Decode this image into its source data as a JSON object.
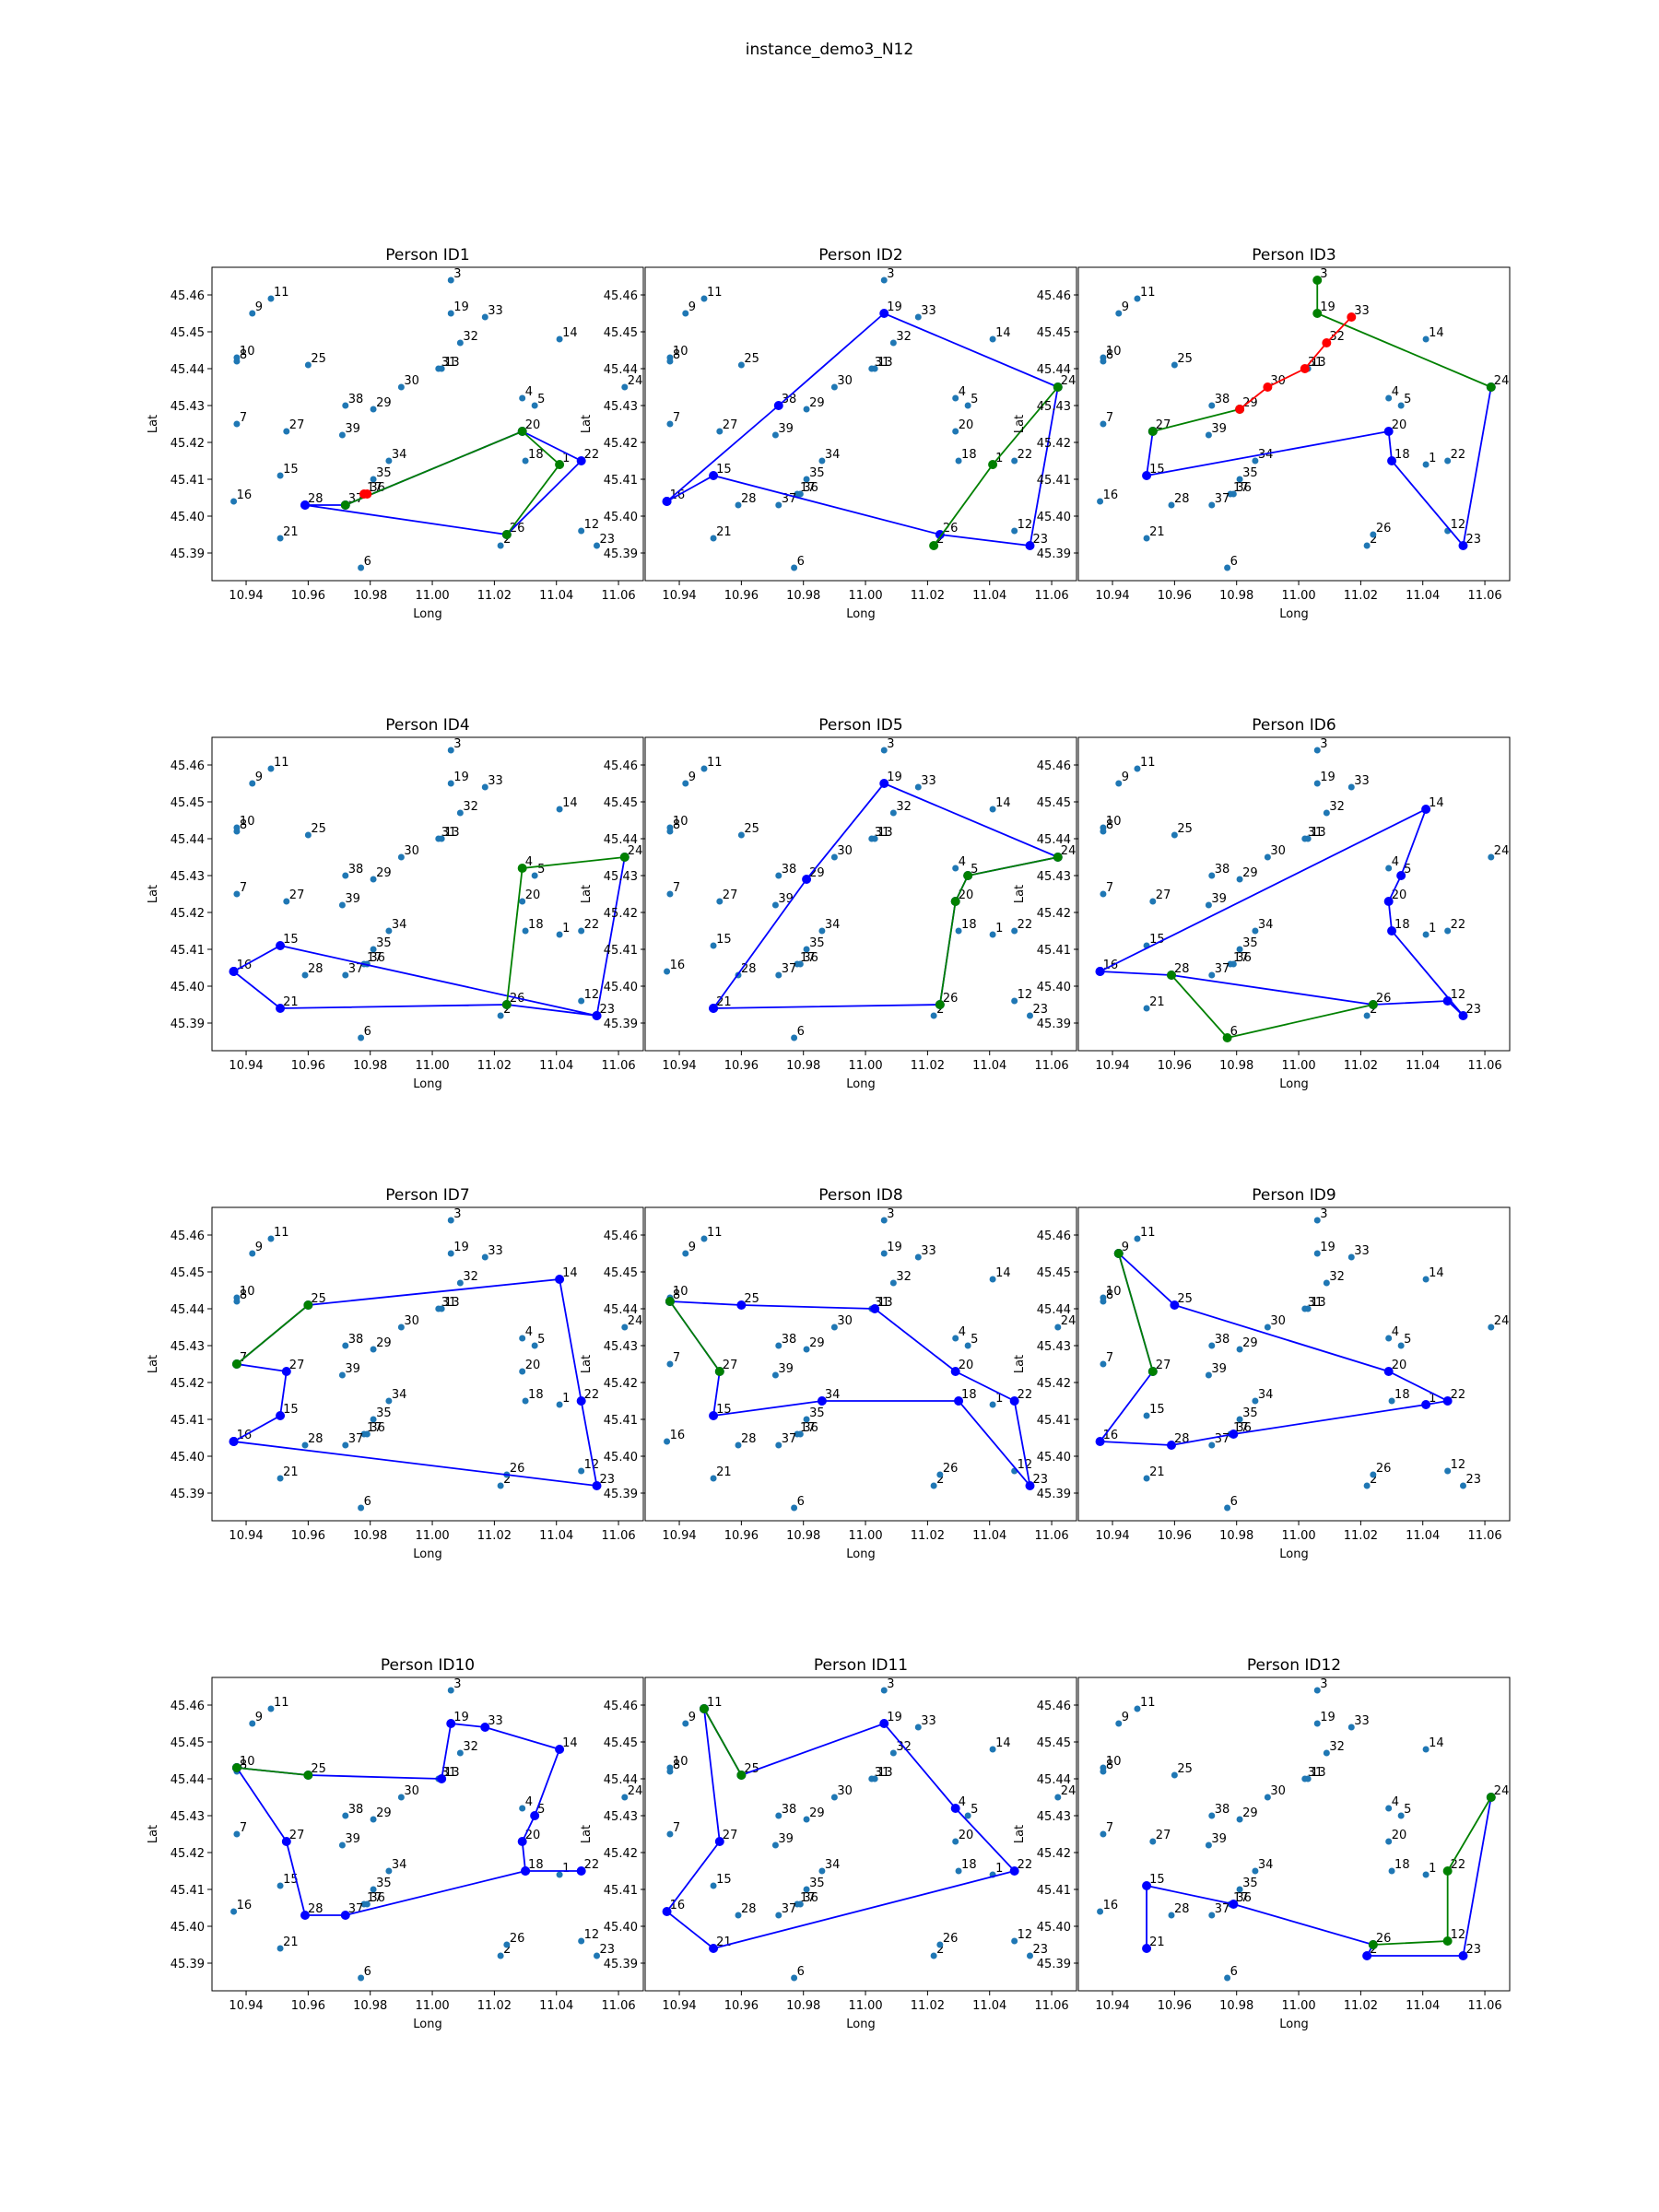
{
  "figure_title": "instance_demo3_N12",
  "xlabel": "Long",
  "ylabel": "Lat",
  "xticks": [
    "10.94",
    "10.96",
    "10.98",
    "11.00",
    "11.02",
    "11.04",
    "11.06"
  ],
  "yticks": [
    "45.39",
    "45.40",
    "45.41",
    "45.42",
    "45.43",
    "45.44",
    "45.45",
    "45.46"
  ],
  "colors": {
    "points": "#1f77b4",
    "route": "#0000ff",
    "walk": "#008000",
    "alt": "#ff0000"
  },
  "chart_data": {
    "type": "scatter",
    "xlim": [
      10.929,
      11.068
    ],
    "ylim": [
      45.3825,
      45.4675
    ],
    "nodes": [
      {
        "id": "1",
        "x": 11.041,
        "y": 45.414
      },
      {
        "id": "2",
        "x": 11.022,
        "y": 45.392
      },
      {
        "id": "3",
        "x": 11.006,
        "y": 45.464
      },
      {
        "id": "4",
        "x": 11.029,
        "y": 45.432
      },
      {
        "id": "5",
        "x": 11.033,
        "y": 45.43
      },
      {
        "id": "6",
        "x": 10.977,
        "y": 45.386
      },
      {
        "id": "7",
        "x": 10.937,
        "y": 45.425
      },
      {
        "id": "8",
        "x": 10.937,
        "y": 45.442
      },
      {
        "id": "9",
        "x": 10.942,
        "y": 45.455
      },
      {
        "id": "10",
        "x": 10.937,
        "y": 45.443
      },
      {
        "id": "11",
        "x": 10.948,
        "y": 45.459
      },
      {
        "id": "12",
        "x": 11.048,
        "y": 45.396
      },
      {
        "id": "13",
        "x": 11.003,
        "y": 45.44
      },
      {
        "id": "14",
        "x": 11.041,
        "y": 45.448
      },
      {
        "id": "15",
        "x": 10.951,
        "y": 45.411
      },
      {
        "id": "16",
        "x": 10.936,
        "y": 45.404
      },
      {
        "id": "17",
        "x": 10.978,
        "y": 45.406
      },
      {
        "id": "18",
        "x": 11.03,
        "y": 45.415
      },
      {
        "id": "19",
        "x": 11.006,
        "y": 45.455
      },
      {
        "id": "20",
        "x": 11.029,
        "y": 45.423
      },
      {
        "id": "21",
        "x": 10.951,
        "y": 45.394
      },
      {
        "id": "22",
        "x": 11.048,
        "y": 45.415
      },
      {
        "id": "23",
        "x": 11.053,
        "y": 45.392
      },
      {
        "id": "24",
        "x": 11.062,
        "y": 45.435
      },
      {
        "id": "25",
        "x": 10.96,
        "y": 45.441
      },
      {
        "id": "26",
        "x": 11.024,
        "y": 45.395
      },
      {
        "id": "27",
        "x": 10.953,
        "y": 45.423
      },
      {
        "id": "28",
        "x": 10.959,
        "y": 45.403
      },
      {
        "id": "29",
        "x": 10.981,
        "y": 45.429
      },
      {
        "id": "30",
        "x": 10.99,
        "y": 45.435
      },
      {
        "id": "31",
        "x": 11.002,
        "y": 45.44
      },
      {
        "id": "32",
        "x": 11.009,
        "y": 45.447
      },
      {
        "id": "33",
        "x": 11.017,
        "y": 45.454
      },
      {
        "id": "34",
        "x": 10.986,
        "y": 45.415
      },
      {
        "id": "35",
        "x": 10.981,
        "y": 45.41
      },
      {
        "id": "36",
        "x": 10.979,
        "y": 45.406
      },
      {
        "id": "37",
        "x": 10.972,
        "y": 45.403
      },
      {
        "id": "38",
        "x": 10.972,
        "y": 45.43
      },
      {
        "id": "39",
        "x": 10.971,
        "y": 45.422
      }
    ],
    "panels": [
      {
        "title": "Person ID1",
        "blue": [
          "28",
          "26",
          "22",
          "20",
          "37",
          "28"
        ],
        "green": [
          "37",
          "20",
          "1",
          "26"
        ],
        "red": [
          "17",
          "36"
        ]
      },
      {
        "title": "Person ID2",
        "blue": [
          "16",
          "38",
          "19",
          "24",
          "23",
          "26",
          "15",
          "16"
        ],
        "green": [
          "2",
          "1",
          "24"
        ],
        "red": []
      },
      {
        "title": "Person ID3",
        "blue": [
          "27",
          "15",
          "20",
          "18",
          "23",
          "24"
        ],
        "green": [
          "27",
          "29"
        ],
        "red": [
          "29",
          "30",
          "31",
          "32",
          "33"
        ],
        "green2": [
          "3",
          "19",
          "24"
        ]
      },
      {
        "title": "Person ID4",
        "blue": [
          "16",
          "15",
          "23",
          "24",
          "23",
          "26",
          "21",
          "16"
        ],
        "green": [
          "26",
          "4",
          "24"
        ],
        "red": []
      },
      {
        "title": "Person ID5",
        "blue": [
          "21",
          "29",
          "19",
          "24",
          "5",
          "20",
          "26",
          "21"
        ],
        "green": [
          "24",
          "5",
          "20",
          "26"
        ],
        "red": []
      },
      {
        "title": "Person ID6",
        "blue": [
          "16",
          "14",
          "5",
          "20",
          "18",
          "23",
          "12",
          "26",
          "28",
          "16"
        ],
        "green": [
          "28",
          "6",
          "26"
        ],
        "red": []
      },
      {
        "title": "Person ID7",
        "blue": [
          "16",
          "15",
          "27",
          "7",
          "25",
          "14",
          "22",
          "23",
          "16"
        ],
        "green": [
          "7",
          "25"
        ],
        "red": []
      },
      {
        "title": "Person ID8",
        "blue": [
          "8",
          "25",
          "13",
          "20",
          "22",
          "23",
          "18",
          "34",
          "15",
          "27",
          "8"
        ],
        "green": [
          "8",
          "27"
        ],
        "red": []
      },
      {
        "title": "Person ID9",
        "blue": [
          "9",
          "25",
          "20",
          "22",
          "1",
          "36",
          "28",
          "16",
          "27",
          "9"
        ],
        "green": [
          "9",
          "27"
        ],
        "red": []
      },
      {
        "title": "Person ID10",
        "blue": [
          "10",
          "25",
          "13",
          "19",
          "33",
          "14",
          "5",
          "20",
          "18",
          "22",
          "18",
          "37",
          "28",
          "27",
          "10"
        ],
        "green": [
          "10",
          "25"
        ],
        "red": []
      },
      {
        "title": "Person ID11",
        "blue": [
          "11",
          "25",
          "19",
          "4",
          "22",
          "21",
          "16",
          "27",
          "11"
        ],
        "green": [
          "11",
          "25"
        ],
        "red": []
      },
      {
        "title": "Person ID12",
        "blue": [
          "21",
          "15",
          "36",
          "26",
          "2",
          "23",
          "24"
        ],
        "green": [
          "24",
          "22",
          "12",
          "26"
        ],
        "red": []
      }
    ]
  }
}
